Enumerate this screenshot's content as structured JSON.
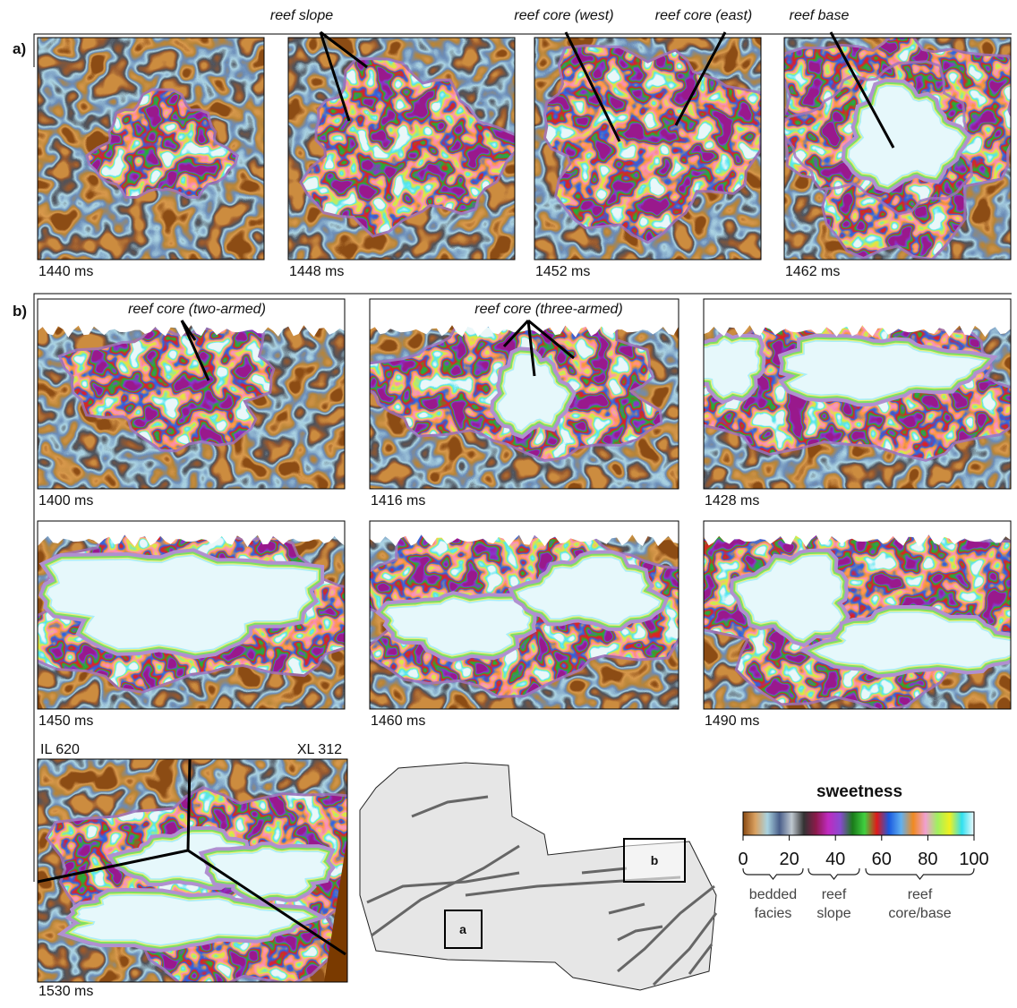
{
  "panel_a": {
    "label": "a)",
    "annotations": [
      "reef slope",
      "reef core (west)",
      "reef core (east)",
      "reef base"
    ],
    "slices": [
      "1440 ms",
      "1448 ms",
      "1452 ms",
      "1462 ms"
    ]
  },
  "panel_b": {
    "label": "b)",
    "annotations": [
      "reef core (two-armed)",
      "reef core (three-armed)"
    ],
    "slices": [
      "1400 ms",
      "1416 ms",
      "1428 ms",
      "1450 ms",
      "1460 ms",
      "1490 ms",
      "1530 ms"
    ],
    "corner_labels": [
      "IL 620",
      "XL 312"
    ]
  },
  "map": {
    "boxes": [
      "a",
      "b"
    ]
  },
  "colorbar": {
    "title": "sweetness",
    "ticks": [
      0,
      20,
      40,
      60,
      80,
      100
    ],
    "colors": [
      "#8a4a12",
      "#d9a060",
      "#a9d3e0",
      "#4a5f8a",
      "#bfc8d0",
      "#333333",
      "#8b1a4a",
      "#c02ac0",
      "#8a4ad0",
      "#1a7a1a",
      "#40d040",
      "#e01a1a",
      "#1a5ae0",
      "#60b0f0",
      "#f08a20",
      "#f0a0d0",
      "#a0f060",
      "#f0f020",
      "#30e0f0",
      "#f0fafc"
    ],
    "groups": [
      {
        "lines": [
          "bedded",
          "facies"
        ]
      },
      {
        "lines": [
          "reef",
          "slope"
        ]
      },
      {
        "lines": [
          "reef",
          "core/base"
        ]
      }
    ]
  }
}
